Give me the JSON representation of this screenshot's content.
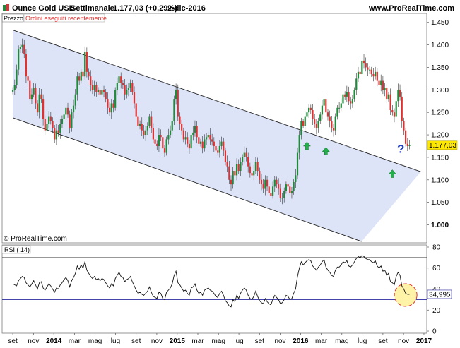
{
  "header": {
    "instrument": "Ounce Gold USD",
    "timeframe": "Settimanale",
    "last": "1.177,03 (+0,29%)",
    "date": "2-dic-2016",
    "site": "www.ProRealTime.com"
  },
  "tabs": {
    "price": "Prezzo",
    "orders": "Ordini eseguiti recentemente"
  },
  "copyright": "© ProRealTime.com",
  "rsi_label": "RSI ( 14)",
  "colors": {
    "up": "#1f8a3a",
    "down": "#e03030",
    "channel": "#dde4f8",
    "arrow": "#22b04a",
    "question": "#2040c0",
    "highlight": "#fff3a8"
  },
  "chart_data": [
    {
      "type": "candlestick",
      "title": "Ounce Gold USD",
      "y_ticks": [
        "1.450",
        "1.400",
        "1.350",
        "1.300",
        "1.250",
        "1.200",
        "1.150",
        "1.100",
        "1.050",
        "1.000"
      ],
      "y_tick_values": [
        1450,
        1400,
        1350,
        1300,
        1250,
        1200,
        1150,
        1100,
        1050,
        1000
      ],
      "ylim": [
        960,
        1470
      ],
      "last_price_label": "1.177,03",
      "last_price": 1177.03,
      "x_ticks": [
        {
          "label": "set",
          "t": 0.0
        },
        {
          "label": "nov",
          "t": 8.7
        },
        {
          "label": "2014",
          "t": 17.3,
          "bold": true
        },
        {
          "label": "mar",
          "t": 26.0
        },
        {
          "label": "mag",
          "t": 34.7
        },
        {
          "label": "lug",
          "t": 43.3
        },
        {
          "label": "set",
          "t": 52.0
        },
        {
          "label": "nov",
          "t": 60.7
        },
        {
          "label": "2015",
          "t": 69.3,
          "bold": true
        },
        {
          "label": "mar",
          "t": 78.0
        },
        {
          "label": "mag",
          "t": 86.7
        },
        {
          "label": "lug",
          "t": 95.3
        },
        {
          "label": "set",
          "t": 104.0
        },
        {
          "label": "nov",
          "t": 112.7
        },
        {
          "label": "2016",
          "t": 121.3,
          "bold": true
        },
        {
          "label": "mar",
          "t": 130.0
        },
        {
          "label": "mag",
          "t": 138.7
        },
        {
          "label": "lug",
          "t": 147.3
        },
        {
          "label": "set",
          "t": 156.0
        },
        {
          "label": "nov",
          "t": 164.7
        },
        {
          "label": "2017",
          "t": 173.3,
          "bold": true
        }
      ],
      "xlim": [
        -4.5,
        174.5
      ],
      "channel_upper": [
        [
          0,
          1433
        ],
        [
          172,
          1118
        ]
      ],
      "channel_lower": [
        [
          0,
          1238
        ],
        [
          147,
          963
        ]
      ],
      "annotations": [
        {
          "type": "up-arrow",
          "t": 124,
          "price": 1175
        },
        {
          "type": "up-arrow",
          "t": 132,
          "price": 1163
        },
        {
          "type": "up-arrow",
          "t": 160,
          "price": 1113
        },
        {
          "type": "question-mark",
          "t": 162,
          "price": 1160
        }
      ],
      "closes": [
        1300,
        1310,
        1345,
        1390,
        1395,
        1400,
        1380,
        1330,
        1320,
        1280,
        1290,
        1305,
        1270,
        1250,
        1290,
        1280,
        1235,
        1210,
        1225,
        1240,
        1230,
        1215,
        1190,
        1210,
        1205,
        1225,
        1235,
        1245,
        1260,
        1245,
        1215,
        1250,
        1265,
        1290,
        1330,
        1320,
        1340,
        1330,
        1385,
        1340,
        1330,
        1310,
        1300,
        1310,
        1295,
        1300,
        1290,
        1300,
        1295,
        1280,
        1260,
        1250,
        1270,
        1260,
        1300,
        1315,
        1330,
        1315,
        1310,
        1290,
        1300,
        1305,
        1315,
        1295,
        1270,
        1240,
        1220,
        1225,
        1210,
        1200,
        1210,
        1220,
        1240,
        1215,
        1190,
        1180,
        1175,
        1200,
        1195,
        1170,
        1160,
        1190,
        1200,
        1210,
        1230,
        1280,
        1300,
        1240,
        1225,
        1210,
        1190,
        1195,
        1180,
        1170,
        1200,
        1205,
        1220,
        1195,
        1180,
        1185,
        1170,
        1190,
        1195,
        1200,
        1190,
        1185,
        1175,
        1165,
        1160,
        1175,
        1185,
        1165,
        1140,
        1130,
        1100,
        1090,
        1120,
        1110,
        1135,
        1120,
        1140,
        1150,
        1160,
        1150,
        1130,
        1115,
        1110,
        1120,
        1140,
        1120,
        1100,
        1090,
        1080,
        1100,
        1085,
        1070,
        1065,
        1085,
        1100,
        1090,
        1080,
        1060,
        1060,
        1075,
        1090,
        1085,
        1070,
        1075,
        1095,
        1110,
        1160,
        1200,
        1230,
        1220,
        1240,
        1250,
        1260,
        1255,
        1235,
        1225,
        1215,
        1230,
        1245,
        1265,
        1280,
        1250,
        1240,
        1230,
        1215,
        1210,
        1240,
        1260,
        1260,
        1270,
        1290,
        1285,
        1295,
        1275,
        1270,
        1280,
        1300,
        1325,
        1340,
        1335,
        1365,
        1360,
        1350,
        1345,
        1345,
        1335,
        1330,
        1340,
        1320,
        1310,
        1320,
        1300,
        1305,
        1280,
        1290,
        1255,
        1250,
        1240,
        1275,
        1300,
        1285,
        1230,
        1210,
        1180,
        1175,
        1177
      ],
      "close_step": 0.8
    },
    {
      "type": "line",
      "title": "RSI ( 14)",
      "series_label": "RSI ( 14)",
      "y_ticks": [
        "80",
        "60",
        "40",
        "20",
        "0"
      ],
      "y_tick_values": [
        80,
        60,
        40,
        20,
        0
      ],
      "ylim": [
        -2,
        82
      ],
      "reference_lines": [
        70,
        30
      ],
      "last_value_label": "34,995",
      "last_value": 34.995,
      "values": [
        45,
        44,
        43,
        48,
        50,
        52,
        51,
        46,
        44,
        42,
        45,
        48,
        44,
        40,
        46,
        47,
        41,
        39,
        42,
        45,
        43,
        40,
        37,
        41,
        40,
        44,
        46,
        49,
        51,
        48,
        42,
        48,
        51,
        55,
        62,
        59,
        63,
        60,
        66,
        58,
        55,
        52,
        50,
        52,
        49,
        50,
        48,
        50,
        49,
        46,
        43,
        41,
        45,
        43,
        50,
        53,
        56,
        52,
        51,
        47,
        49,
        50,
        52,
        47,
        43,
        39,
        36,
        37,
        35,
        34,
        36,
        38,
        42,
        37,
        33,
        32,
        31,
        37,
        36,
        31,
        30,
        37,
        39,
        41,
        45,
        53,
        57,
        46,
        44,
        41,
        38,
        39,
        36,
        34,
        41,
        42,
        45,
        39,
        36,
        37,
        34,
        39,
        40,
        41,
        39,
        38,
        36,
        33,
        32,
        36,
        38,
        34,
        29,
        27,
        24,
        23,
        30,
        28,
        34,
        31,
        36,
        39,
        41,
        39,
        34,
        31,
        30,
        33,
        38,
        33,
        29,
        27,
        26,
        31,
        28,
        26,
        25,
        30,
        34,
        32,
        30,
        26,
        27,
        30,
        34,
        33,
        30,
        31,
        36,
        40,
        52,
        60,
        66,
        63,
        65,
        67,
        68,
        67,
        62,
        60,
        58,
        61,
        63,
        66,
        68,
        61,
        58,
        56,
        53,
        52,
        58,
        61,
        61,
        63,
        66,
        65,
        67,
        62,
        61,
        63,
        66,
        69,
        71,
        70,
        72,
        71,
        69,
        68,
        68,
        66,
        65,
        67,
        62,
        60,
        62,
        57,
        58,
        53,
        55,
        47,
        46,
        44,
        52,
        56,
        53,
        43,
        40,
        36,
        35,
        35
      ],
      "value_step": 0.8
    }
  ]
}
